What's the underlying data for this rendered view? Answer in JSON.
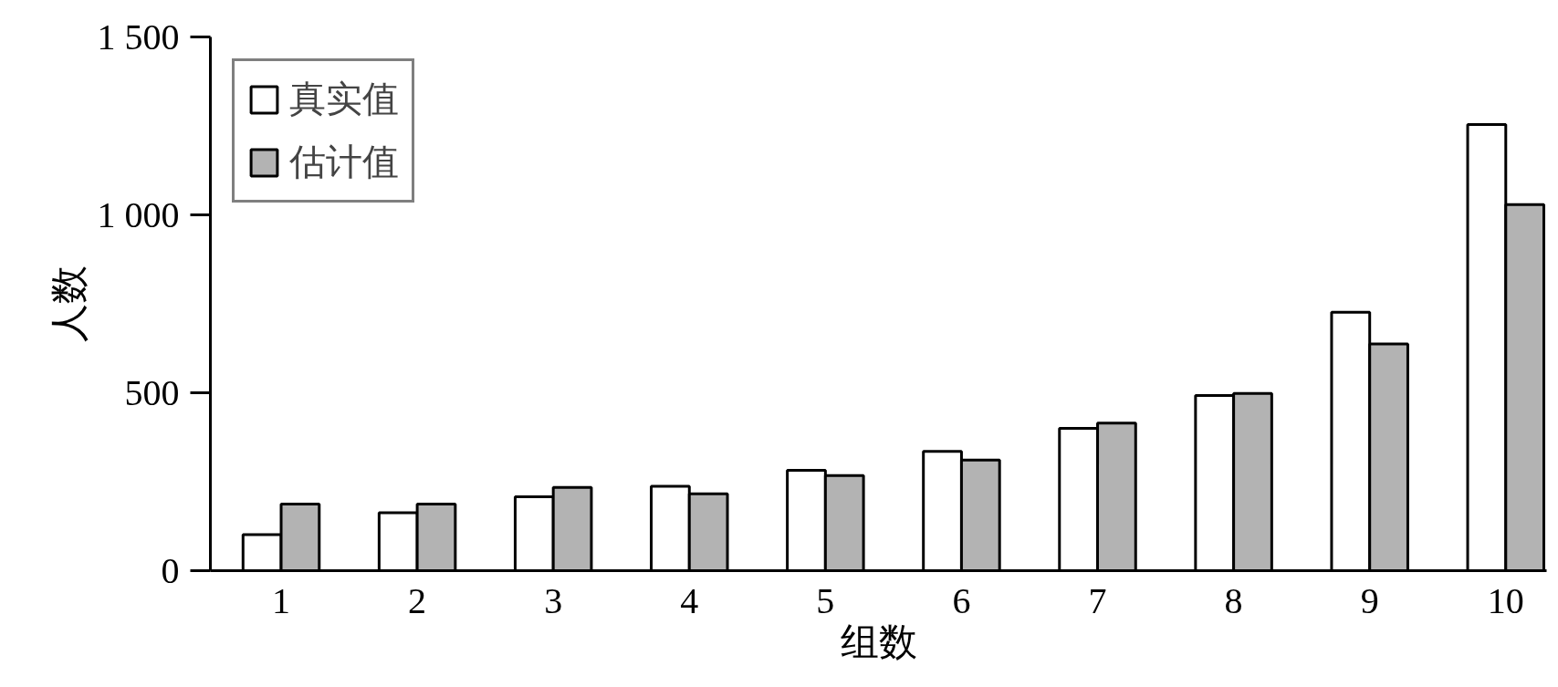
{
  "chart_data": {
    "type": "bar",
    "xlabel": "组数",
    "ylabel": "人数",
    "categories": [
      "1",
      "2",
      "3",
      "4",
      "5",
      "6",
      "7",
      "8",
      "9",
      "10"
    ],
    "series": [
      {
        "name": "真实值",
        "color": "#ffffff",
        "values": [
          101,
          163,
          208,
          237,
          282,
          335,
          400,
          492,
          726,
          1254
        ]
      },
      {
        "name": "估计值",
        "color": "#b3b3b3",
        "values": [
          187,
          187,
          234,
          216,
          267,
          311,
          415,
          498,
          637,
          1029
        ]
      }
    ],
    "ylim": [
      0,
      1500
    ],
    "yticks": [
      0,
      500,
      {
        "value": 1000,
        "label": "1 000"
      },
      {
        "value": 1500,
        "label": "1 500"
      }
    ],
    "grid": false,
    "legend": "top left"
  }
}
